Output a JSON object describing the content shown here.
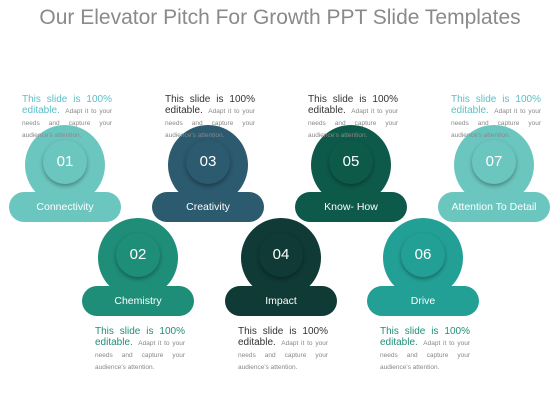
{
  "header": {
    "title": "Our Elevator Pitch For Growth PPT Slide Templates"
  },
  "items": [
    {
      "number": "01",
      "label": "Connectivity",
      "heading": "This slide is 100% editable.",
      "body": "Adapt it to your needs and capture your audience's attention.",
      "color": "#6cc6c0",
      "heading_color": "#5bbfc8"
    },
    {
      "number": "02",
      "label": "Chemistry",
      "heading": "This slide is 100% editable.",
      "body": "Adapt it to your needs and capture your audience's attention.",
      "color": "#1f8e78",
      "heading_color": "#1f8e78"
    },
    {
      "number": "03",
      "label": "Creativity",
      "heading": "This slide is 100% editable.",
      "body": "Adapt it to your needs and capture your audience's attention.",
      "color": "#2c5a6e",
      "heading_color": "#333333"
    },
    {
      "number": "04",
      "label": "Impact",
      "heading": "This slide is 100% editable.",
      "body": "Adapt it to your needs and capture your audience's attention.",
      "color": "#0f3a36",
      "heading_color": "#333333"
    },
    {
      "number": "05",
      "label": "Know- How",
      "heading": "This slide is 100% editable.",
      "body": "Adapt it to your needs and capture your audience's attention.",
      "color": "#0e5a4a",
      "heading_color": "#333333"
    },
    {
      "number": "06",
      "label": "Drive",
      "heading": "This slide is 100% editable.",
      "body": "Adapt it to your needs and capture your audience's attention.",
      "color": "#23a096",
      "heading_color": "#1f8e78"
    },
    {
      "number": "07",
      "label": "Attention To Detail",
      "heading": "This slide is 100% editable.",
      "body": "Adapt it to your needs and capture your audience's attention.",
      "color": "#6cc6c0",
      "heading_color": "#5bbfc8"
    }
  ]
}
